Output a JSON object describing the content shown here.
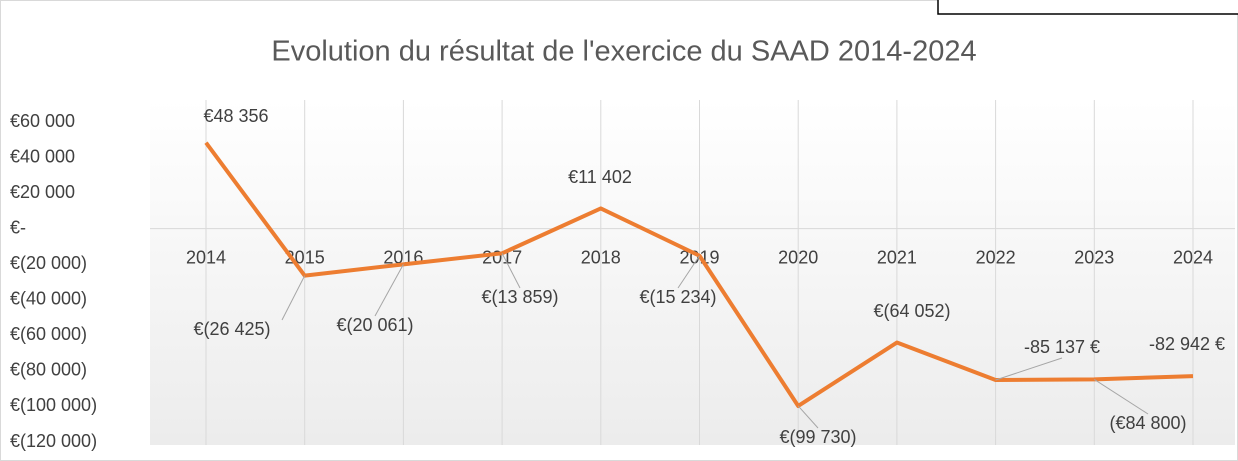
{
  "chart_data": {
    "type": "line",
    "title": "Evolution du résultat de l'exercice du SAAD 2014-2024",
    "categories": [
      "2014",
      "2015",
      "2016",
      "2017",
      "2018",
      "2019",
      "2020",
      "2021",
      "2022",
      "2023",
      "2024"
    ],
    "series": [
      {
        "name": "Résultat",
        "color": "#ed7d31",
        "values": [
          48356,
          -26425,
          -20061,
          -13859,
          11402,
          -15234,
          -99730,
          -64052,
          -85137,
          -84800,
          -82942
        ],
        "value_labels": [
          "€48 356",
          "€(26 425)",
          "€(20 061)",
          "€(13 859)",
          "€11 402",
          "€(15 234)",
          "€(99 730)",
          "€(64 052)",
          "-85 137 €",
          "(€84 800)",
          "-82 942 €"
        ]
      }
    ],
    "ylim": [
      -120000,
      60000
    ],
    "yticks": [
      {
        "value": 60000,
        "label": "€60 000"
      },
      {
        "value": 40000,
        "label": "€40 000"
      },
      {
        "value": 20000,
        "label": "€20 000"
      },
      {
        "value": 0,
        "label": "€-"
      },
      {
        "value": -20000,
        "label": "€(20 000)"
      },
      {
        "value": -40000,
        "label": "€(40 000)"
      },
      {
        "value": -60000,
        "label": "€(60 000)"
      },
      {
        "value": -80000,
        "label": "€(80 000)"
      },
      {
        "value": -100000,
        "label": "€(100 000)"
      },
      {
        "value": -120000,
        "label": "€(120 000)"
      }
    ],
    "grid": false
  }
}
